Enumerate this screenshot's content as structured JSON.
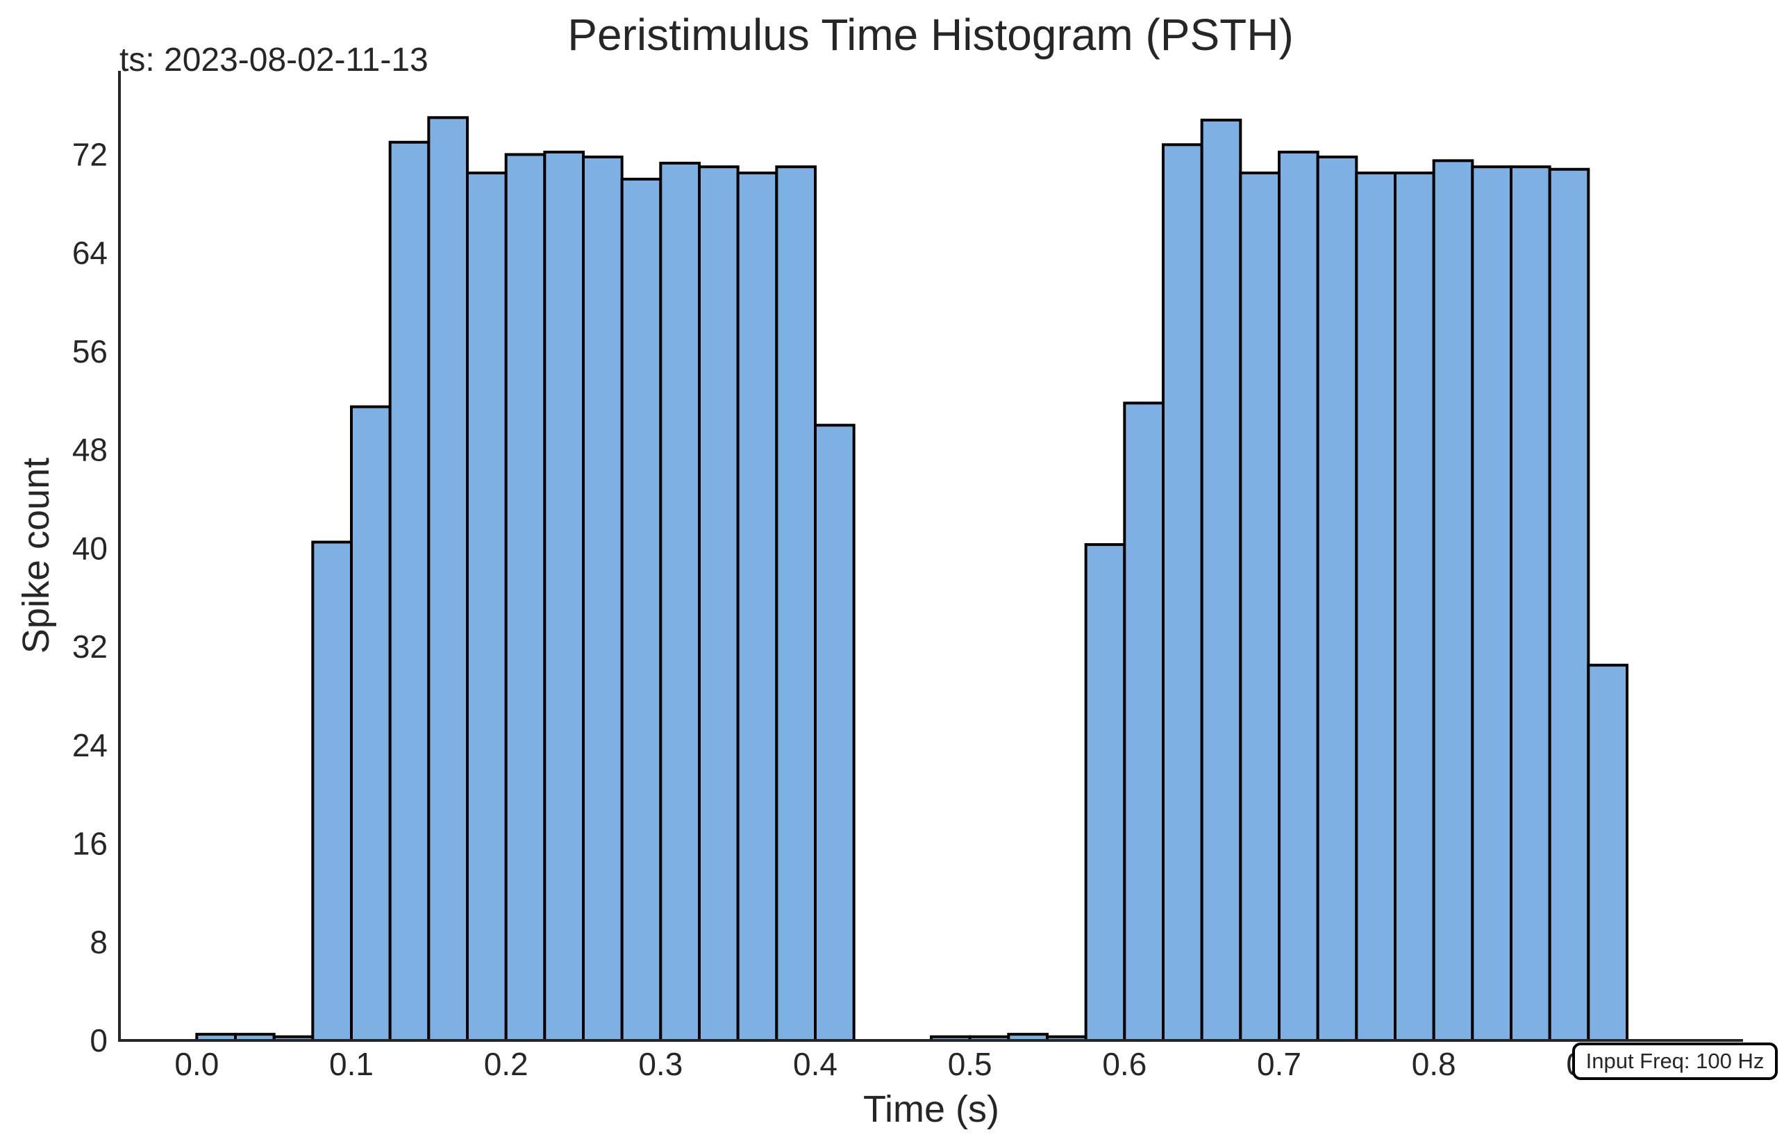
{
  "colors": {
    "bar_fill": "#7eb0e3",
    "bar_edge": "#000000",
    "axis": "#262626",
    "text": "#262626"
  },
  "chart_data": {
    "type": "bar",
    "title": "Peristimulus Time Histogram (PSTH)",
    "xlabel": "Time (s)",
    "ylabel": "Spike count",
    "timestamp": "ts: 2023-08-02-11-13",
    "annotation": "Input Freq: 100 Hz",
    "bin_width": 0.025,
    "bin_starts": [
      0.0,
      0.025,
      0.05,
      0.075,
      0.1,
      0.125,
      0.15,
      0.175,
      0.2,
      0.225,
      0.25,
      0.275,
      0.3,
      0.325,
      0.35,
      0.375,
      0.4,
      0.425,
      0.45,
      0.475,
      0.5,
      0.525,
      0.55,
      0.575,
      0.6,
      0.625,
      0.65,
      0.675,
      0.7,
      0.725,
      0.75,
      0.775,
      0.8,
      0.825,
      0.85,
      0.875,
      0.9,
      0.925,
      0.95,
      0.975
    ],
    "values": [
      0.5,
      0.5,
      0.3,
      40.5,
      51.5,
      73.0,
      75.0,
      70.5,
      72.0,
      72.2,
      71.8,
      70.0,
      71.3,
      71.0,
      70.5,
      71.0,
      50.0,
      0,
      0,
      0.3,
      0.3,
      0.5,
      0.3,
      40.3,
      51.8,
      72.8,
      74.8,
      70.5,
      72.2,
      71.8,
      70.5,
      70.5,
      71.5,
      71.0,
      71.0,
      70.8,
      30.5,
      0,
      0,
      0
    ],
    "xticks": [
      0.0,
      0.1,
      0.2,
      0.3,
      0.4,
      0.5,
      0.6,
      0.7,
      0.8,
      0.9
    ],
    "xtick_labels": [
      "0.0",
      "0.1",
      "0.2",
      "0.3",
      "0.4",
      "0.5",
      "0.6",
      "0.7",
      "0.8",
      "0.9"
    ],
    "yticks": [
      0,
      8,
      16,
      24,
      32,
      40,
      48,
      56,
      64,
      72
    ],
    "ytick_labels": [
      "0",
      "8",
      "16",
      "24",
      "32",
      "40",
      "48",
      "56",
      "64",
      "72"
    ],
    "xlim": [
      -0.05,
      1.0
    ],
    "ylim": [
      0,
      78.8
    ]
  }
}
